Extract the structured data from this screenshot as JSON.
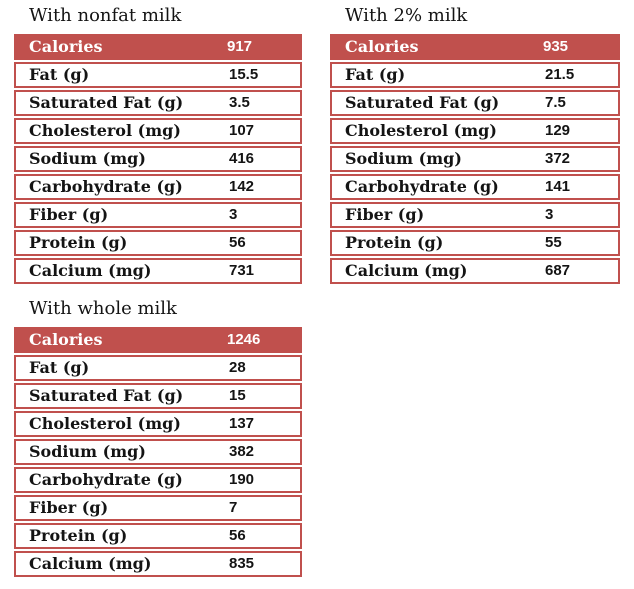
{
  "colors": {
    "accent_red": "#C0504D",
    "header_text": "#FFFFFF",
    "body_text": "#141414",
    "row_background": "#FFFFFF",
    "page_background": "#FFFFFF"
  },
  "chart_data": [
    {
      "type": "table",
      "title": "With nonfat milk",
      "header": {
        "label": "Calories",
        "value": "917"
      },
      "rows": [
        {
          "label": "Fat (g)",
          "value": "15.5"
        },
        {
          "label": "Saturated Fat (g)",
          "value": "3.5"
        },
        {
          "label": "Cholesterol (mg)",
          "value": "107"
        },
        {
          "label": "Sodium (mg)",
          "value": "416"
        },
        {
          "label": "Carbohydrate (g)",
          "value": "142"
        },
        {
          "label": "Fiber (g)",
          "value": "3"
        },
        {
          "label": "Protein (g)",
          "value": "56"
        },
        {
          "label": "Calcium (mg)",
          "value": "731"
        }
      ]
    },
    {
      "type": "table",
      "title": "With 2% milk",
      "header": {
        "label": "Calories",
        "value": "935"
      },
      "rows": [
        {
          "label": "Fat (g)",
          "value": "21.5"
        },
        {
          "label": "Saturated Fat (g)",
          "value": "7.5"
        },
        {
          "label": "Cholesterol (mg)",
          "value": "129"
        },
        {
          "label": "Sodium (mg)",
          "value": "372"
        },
        {
          "label": "Carbohydrate (g)",
          "value": "141"
        },
        {
          "label": "Fiber (g)",
          "value": "3"
        },
        {
          "label": "Protein (g)",
          "value": "55"
        },
        {
          "label": "Calcium (mg)",
          "value": "687"
        }
      ]
    },
    {
      "type": "table",
      "title": "With whole milk",
      "header": {
        "label": "Calories",
        "value": "1246"
      },
      "rows": [
        {
          "label": "Fat (g)",
          "value": "28"
        },
        {
          "label": "Saturated Fat (g)",
          "value": "15"
        },
        {
          "label": "Cholesterol (mg)",
          "value": "137"
        },
        {
          "label": "Sodium (mg)",
          "value": "382"
        },
        {
          "label": "Carbohydrate (g)",
          "value": "190"
        },
        {
          "label": "Fiber (g)",
          "value": "7"
        },
        {
          "label": "Protein (g)",
          "value": "56"
        },
        {
          "label": "Calcium (mg)",
          "value": "835"
        }
      ]
    }
  ]
}
